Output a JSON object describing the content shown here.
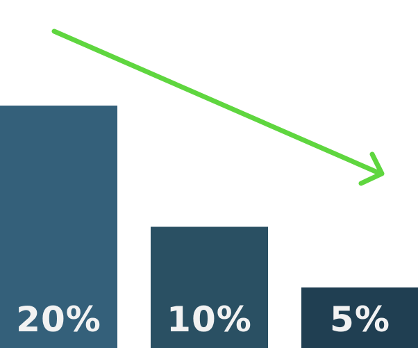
{
  "chart_data": {
    "type": "bar",
    "categories": [
      "",
      "",
      ""
    ],
    "values": [
      20,
      10,
      5
    ],
    "value_labels": [
      "20%",
      "10%",
      "5%"
    ],
    "unit": "%",
    "ylim": [
      0,
      25
    ],
    "grid": false,
    "legend": "none",
    "annotation": "downward-trend-arrow",
    "colors": {
      "bars": [
        "#34607a",
        "#2a5063",
        "#203f52"
      ],
      "labels": "#f2f2f2",
      "arrow": "#5fd63f",
      "background": "#ffffff"
    }
  }
}
